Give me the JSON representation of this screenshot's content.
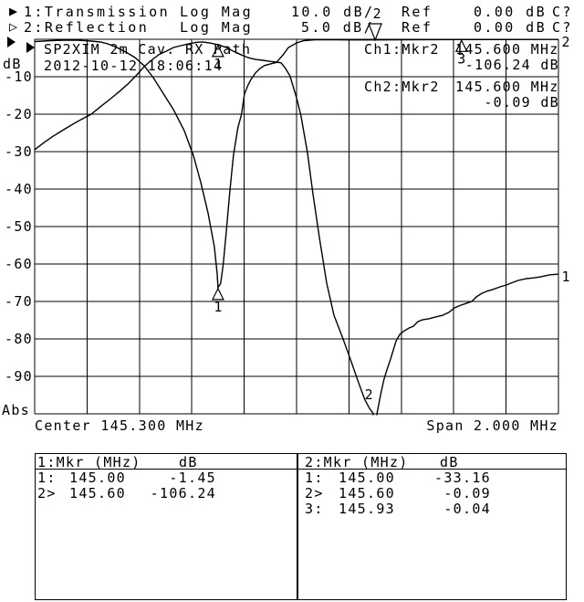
{
  "header": {
    "line1": {
      "indicator": "▶",
      "label": "1:Transmission",
      "format": "Log Mag",
      "scale": "10.0 dB/",
      "ref_label": "Ref",
      "ref_value": "0.00 dB",
      "cal": "C?"
    },
    "line2": {
      "indicator": "▷",
      "label": "2:Reflection",
      "format": "Log Mag",
      "scale": "5.0 dB/",
      "ref_label": "Ref",
      "ref_value": "0.00 dB",
      "cal": "C?"
    }
  },
  "readouts": {
    "ch1": {
      "label": "Ch1:Mkr2",
      "freq": "145.600 MHz",
      "value": "-106.24 dB"
    },
    "ch2": {
      "label": "Ch2:Mkr2",
      "freq": "145.600 MHz",
      "value": "-0.09 dB"
    }
  },
  "marker_tables": [
    {
      "title": "1:Mkr (MHz)",
      "col2": "dB",
      "rows": [
        [
          "1:",
          "145.00",
          "-1.45"
        ],
        [
          "2>",
          "145.60",
          "-106.24"
        ]
      ]
    },
    {
      "title": "2:Mkr (MHz)",
      "col2": "dB",
      "rows": [
        [
          "1:",
          "145.00",
          "-33.16"
        ],
        [
          "2>",
          "145.60",
          "-0.09"
        ],
        [
          "3:",
          "145.93",
          "-0.04"
        ]
      ]
    }
  ],
  "chart_data": {
    "type": "line",
    "title": "SP2XIM 2m Cav. RX Path",
    "timestamp": "2012-10-12 18:06:14",
    "x_axis": {
      "start": 144.3,
      "stop": 146.3,
      "center_label": "Center 145.300 MHz",
      "span_label": "Span 2.000 MHz"
    },
    "y_axis": {
      "unit": "dB",
      "ticks": [
        -10,
        -20,
        -30,
        -40,
        -50,
        -60,
        -70,
        -80,
        -90
      ],
      "bottom_label": "Abs"
    },
    "divisions": {
      "x": 10,
      "y": 10
    },
    "grid_color": "#000000",
    "trace_color": "#000000",
    "series": [
      {
        "name": "Transmission",
        "channel": 1,
        "scale_db_per_div": 10,
        "ref_db": 0.0,
        "points": [
          [
            144.3,
            -29.5
          ],
          [
            144.335,
            -27.6
          ],
          [
            144.37,
            -25.9
          ],
          [
            144.405,
            -24.4
          ],
          [
            144.44,
            -22.9
          ],
          [
            144.475,
            -21.5
          ],
          [
            144.516,
            -20.0
          ],
          [
            144.551,
            -18.0
          ],
          [
            144.586,
            -16.1
          ],
          [
            144.621,
            -14.1
          ],
          [
            144.655,
            -12.0
          ],
          [
            144.69,
            -9.5
          ],
          [
            144.718,
            -7.3
          ],
          [
            144.746,
            -5.6
          ],
          [
            144.774,
            -4.1
          ],
          [
            144.802,
            -3.2
          ],
          [
            144.83,
            -2.2
          ],
          [
            144.858,
            -1.7
          ],
          [
            144.889,
            -1.2
          ],
          [
            144.917,
            -0.8
          ],
          [
            144.941,
            -0.7
          ],
          [
            144.969,
            -1.0
          ],
          [
            145.0,
            -1.45
          ],
          [
            145.032,
            -2.2
          ],
          [
            145.059,
            -3.2
          ],
          [
            145.087,
            -4.1
          ],
          [
            145.115,
            -4.9
          ],
          [
            145.143,
            -5.4
          ],
          [
            145.171,
            -5.6
          ],
          [
            145.199,
            -5.9
          ],
          [
            145.223,
            -6.1
          ],
          [
            145.241,
            -6.3
          ],
          [
            145.258,
            -7.8
          ],
          [
            145.275,
            -9.8
          ],
          [
            145.3,
            -15.6
          ],
          [
            145.317,
            -20.5
          ],
          [
            145.342,
            -30.5
          ],
          [
            145.363,
            -41.5
          ],
          [
            145.387,
            -52.9
          ],
          [
            145.415,
            -65.1
          ],
          [
            145.443,
            -73.7
          ],
          [
            145.474,
            -79.3
          ],
          [
            145.508,
            -85.9
          ],
          [
            145.536,
            -91.5
          ],
          [
            145.56,
            -96.1
          ],
          [
            145.578,
            -98.5
          ],
          [
            145.592,
            -99.8
          ],
          [
            145.6,
            -106.24
          ],
          [
            145.607,
            -100.0
          ],
          [
            145.621,
            -94.9
          ],
          [
            145.634,
            -90.7
          ],
          [
            145.645,
            -88.3
          ],
          [
            145.659,
            -85.4
          ],
          [
            145.68,
            -80.5
          ],
          [
            145.694,
            -78.8
          ],
          [
            145.708,
            -78.0
          ],
          [
            145.729,
            -77.1
          ],
          [
            145.746,
            -76.6
          ],
          [
            145.763,
            -75.4
          ],
          [
            145.781,
            -74.9
          ],
          [
            145.805,
            -74.6
          ],
          [
            145.833,
            -74.1
          ],
          [
            145.857,
            -73.7
          ],
          [
            145.882,
            -72.9
          ],
          [
            145.903,
            -71.7
          ],
          [
            145.927,
            -71.0
          ],
          [
            145.948,
            -70.5
          ],
          [
            145.969,
            -70.0
          ],
          [
            145.986,
            -68.8
          ],
          [
            146.004,
            -68.0
          ],
          [
            146.025,
            -67.3
          ],
          [
            146.049,
            -66.8
          ],
          [
            146.077,
            -66.1
          ],
          [
            146.101,
            -65.6
          ],
          [
            146.119,
            -65.1
          ],
          [
            146.146,
            -64.4
          ],
          [
            146.178,
            -63.9
          ],
          [
            146.206,
            -63.7
          ],
          [
            146.234,
            -63.4
          ],
          [
            146.265,
            -62.9
          ],
          [
            146.3,
            -62.7
          ]
        ]
      },
      {
        "name": "Reflection",
        "channel": 2,
        "scale_db_per_div": 5,
        "ref_db": 0.0,
        "points": [
          [
            144.3,
            -0.3
          ],
          [
            144.36,
            -0.18
          ],
          [
            144.41,
            -0.12
          ],
          [
            144.465,
            -0.12
          ],
          [
            144.516,
            -0.24
          ],
          [
            144.551,
            -0.37
          ],
          [
            144.579,
            -0.61
          ],
          [
            144.614,
            -1.1
          ],
          [
            144.648,
            -1.71
          ],
          [
            144.683,
            -2.44
          ],
          [
            144.718,
            -3.54
          ],
          [
            144.753,
            -5.12
          ],
          [
            144.788,
            -7.07
          ],
          [
            144.83,
            -9.39
          ],
          [
            144.871,
            -12.2
          ],
          [
            144.906,
            -15.5
          ],
          [
            144.934,
            -19.1
          ],
          [
            144.962,
            -23.2
          ],
          [
            144.986,
            -27.7
          ],
          [
            144.997,
            -31.3
          ],
          [
            145.0,
            -33.16
          ],
          [
            145.01,
            -32.6
          ],
          [
            145.02,
            -30.1
          ],
          [
            145.031,
            -25.9
          ],
          [
            145.045,
            -20.4
          ],
          [
            145.059,
            -15.5
          ],
          [
            145.076,
            -11.8
          ],
          [
            145.09,
            -10.0
          ],
          [
            145.101,
            -7.3
          ],
          [
            145.115,
            -6.1
          ],
          [
            145.125,
            -5.4
          ],
          [
            145.143,
            -4.5
          ],
          [
            145.16,
            -3.9
          ],
          [
            145.178,
            -3.5
          ],
          [
            145.199,
            -3.3
          ],
          [
            145.223,
            -3.1
          ],
          [
            145.248,
            -2.1
          ],
          [
            145.269,
            -1.1
          ],
          [
            145.3,
            -0.49
          ],
          [
            145.328,
            -0.18
          ],
          [
            145.37,
            -0.07
          ],
          [
            145.45,
            -0.07
          ],
          [
            145.6,
            -0.09
          ],
          [
            145.7,
            -0.06
          ],
          [
            145.93,
            -0.04
          ],
          [
            146.1,
            -0.04
          ],
          [
            146.3,
            -0.03
          ]
        ]
      }
    ],
    "markers": [
      {
        "series": 0,
        "n": "1",
        "freq": 145.0,
        "value": -1.45,
        "style": "normal"
      },
      {
        "series": 0,
        "n": "2",
        "freq": 145.6,
        "value": -106.24,
        "style": "offscreen-bottom"
      },
      {
        "series": 1,
        "n": "1",
        "freq": 145.0,
        "value": -33.16,
        "style": "normal"
      },
      {
        "series": 1,
        "n": "2",
        "freq": 145.6,
        "value": -0.09,
        "style": "top"
      },
      {
        "series": 1,
        "n": "3",
        "freq": 145.93,
        "value": -0.04,
        "style": "normal"
      }
    ],
    "trace_end_labels": [
      {
        "series": 0,
        "label": "1"
      },
      {
        "series": 1,
        "label": "2"
      }
    ],
    "ref_indicators": [
      {
        "channel": 1
      },
      {
        "channel": 2
      }
    ]
  }
}
